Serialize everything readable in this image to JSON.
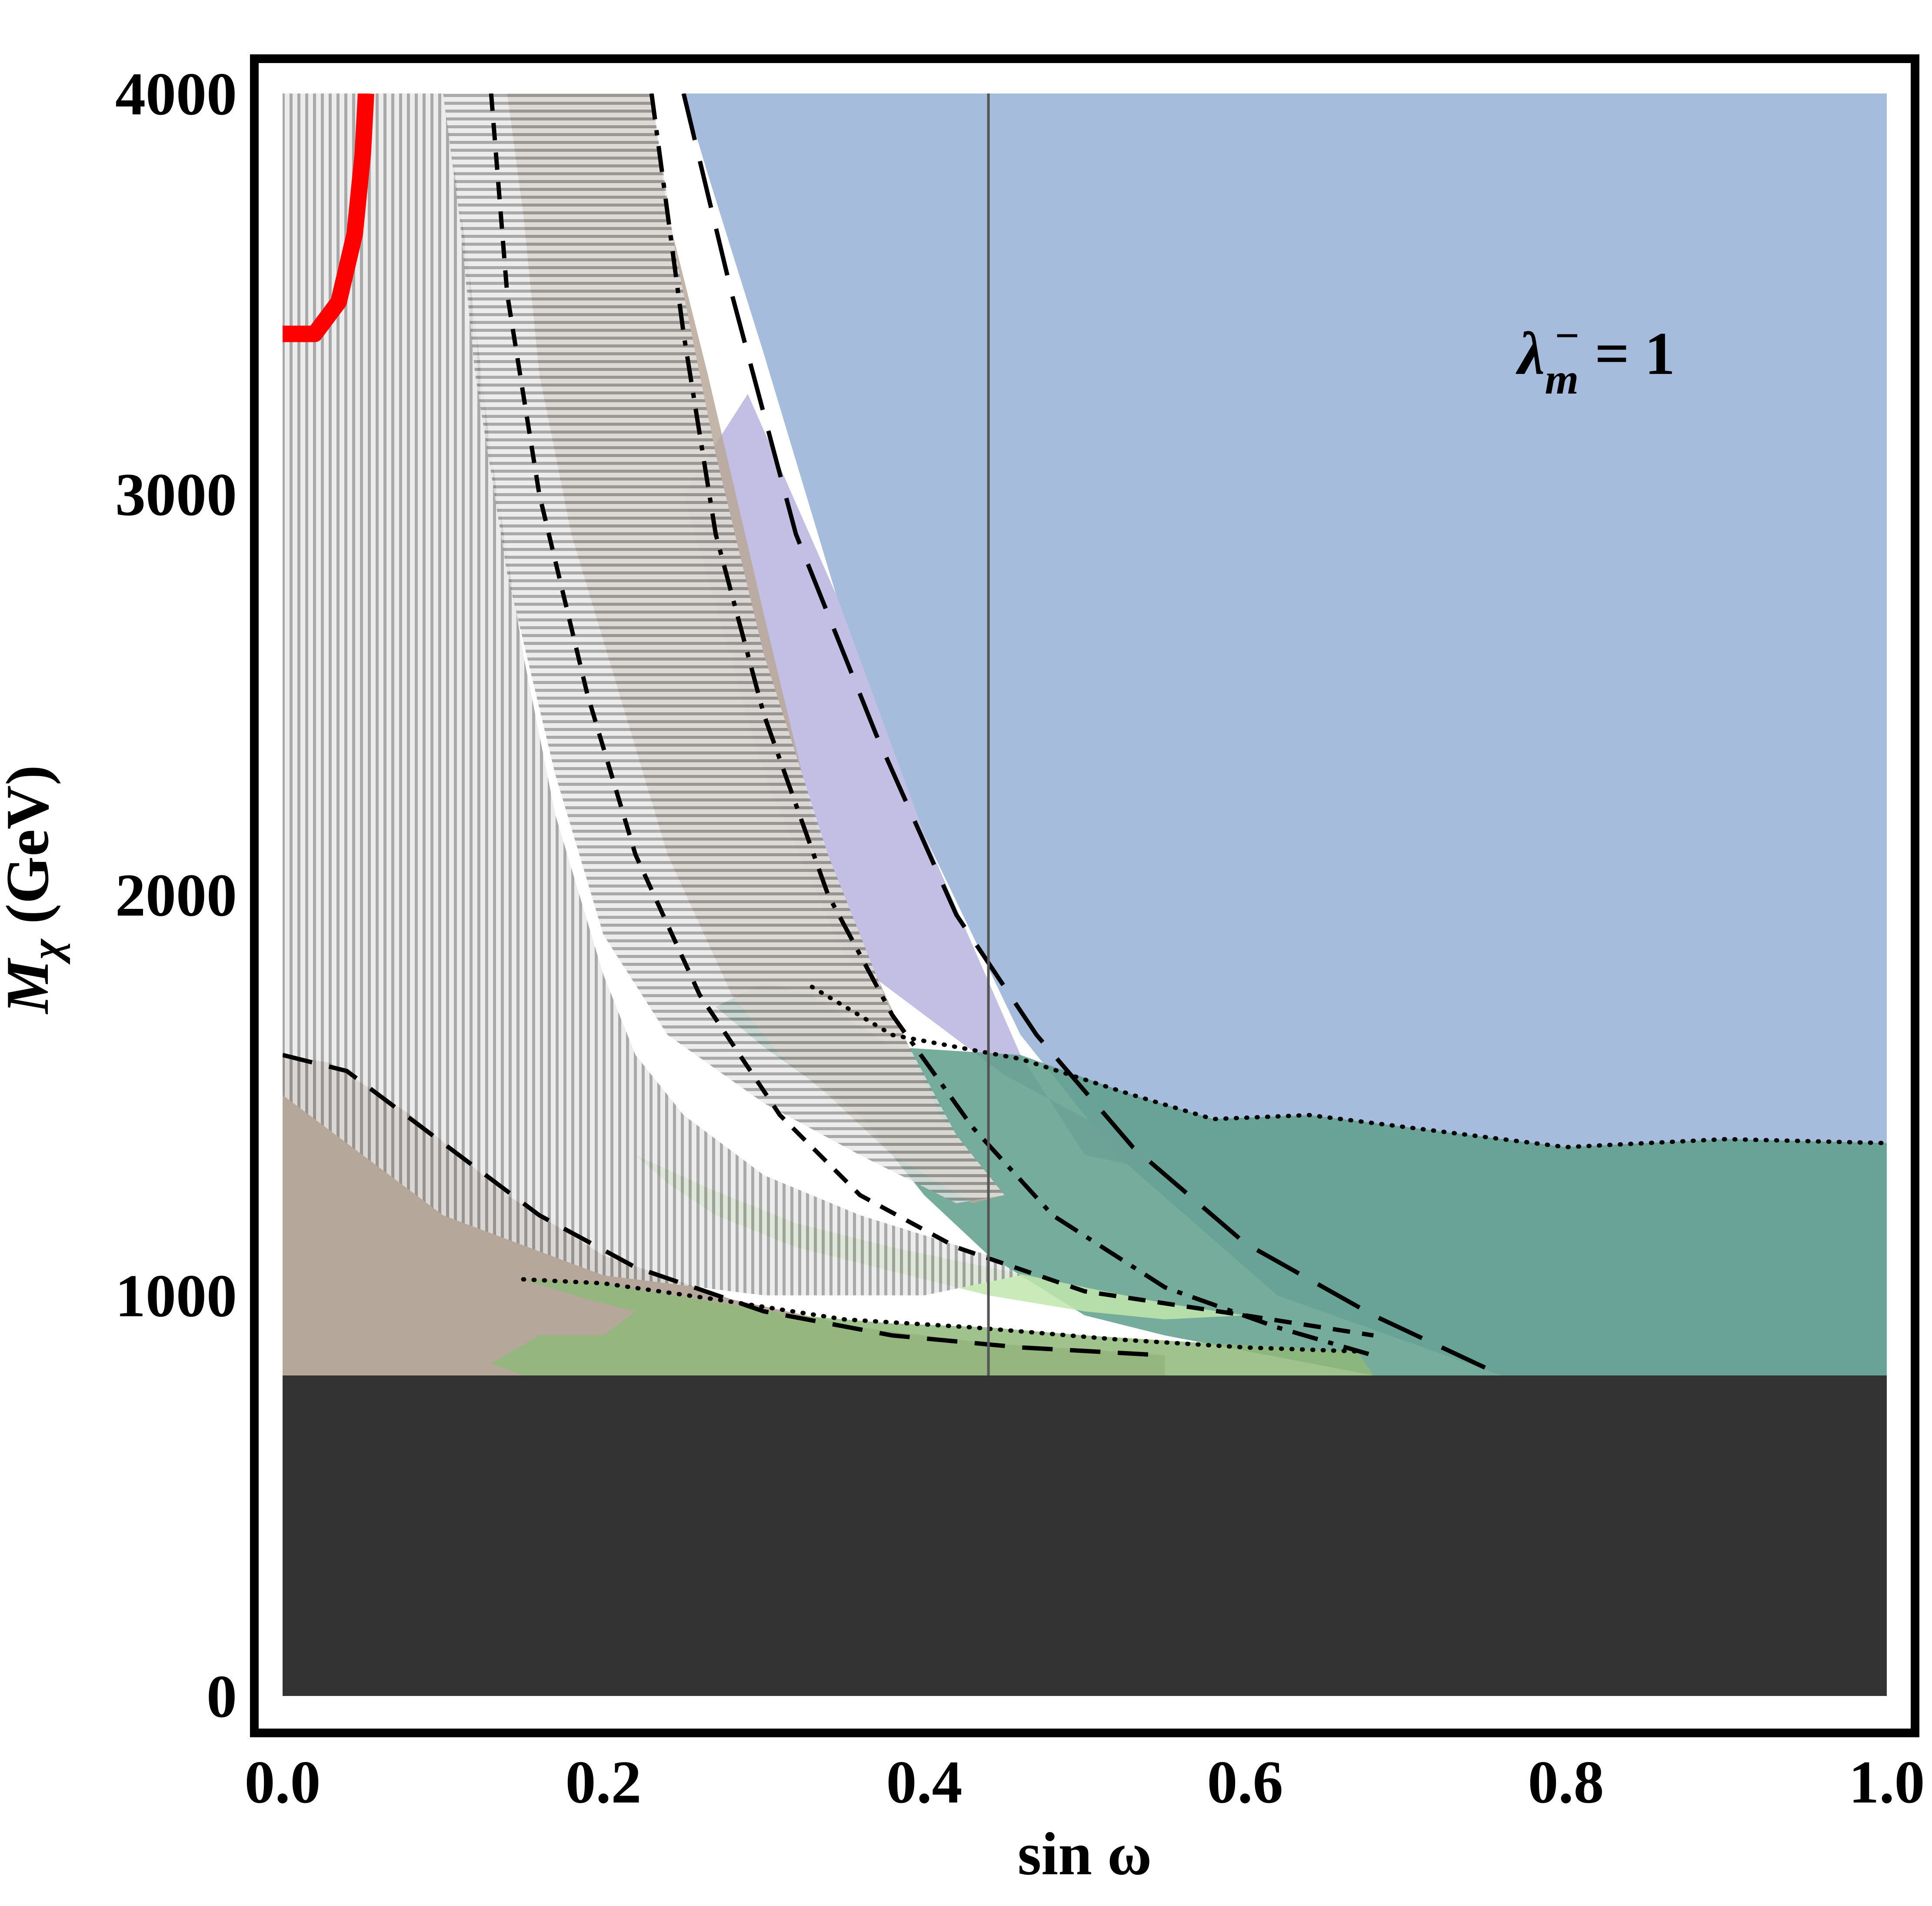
{
  "chart_data": {
    "type": "area",
    "title": "",
    "xlabel": "sin ω",
    "ylabel_main": "M",
    "ylabel_sub": "χ",
    "ylabel_unit": " (GeV)",
    "xlim": [
      0.0,
      1.0
    ],
    "ylim": [
      0,
      4000
    ],
    "x_ticks": [
      0.0,
      0.2,
      0.4,
      0.6,
      0.8,
      1.0
    ],
    "x_tick_labels": [
      "0.0",
      "0.2",
      "0.4",
      "0.6",
      "0.8",
      "1.0"
    ],
    "y_ticks": [
      0,
      1000,
      2000,
      3000,
      4000
    ],
    "y_tick_labels": [
      "0",
      "1000",
      "2000",
      "3000",
      "4000"
    ],
    "grid": false,
    "annotation": {
      "symbol": "λ",
      "sub": "m",
      "sup": "−",
      "rest": " = 1",
      "x": 0.77,
      "y": 3300
    },
    "regions": [
      {
        "name": "excluded-low-mass",
        "color": "#333333",
        "points": [
          [
            0.0,
            0
          ],
          [
            1.0,
            0
          ],
          [
            1.0,
            800
          ],
          [
            0.0,
            800
          ]
        ]
      },
      {
        "name": "region-blue",
        "color": "#95b0d6",
        "points": [
          [
            0.23,
            4000
          ],
          [
            1.0,
            4000
          ],
          [
            1.0,
            800
          ],
          [
            0.76,
            800
          ],
          [
            0.62,
            1000
          ],
          [
            0.52,
            1350
          ],
          [
            0.46,
            1650
          ],
          [
            0.4,
            2150
          ],
          [
            0.345,
            2750
          ],
          [
            0.3,
            3350
          ],
          [
            0.265,
            3800
          ],
          [
            0.25,
            4000
          ]
        ]
      },
      {
        "name": "region-purple",
        "color": "#b8b3de",
        "points": [
          [
            0.25,
            3000
          ],
          [
            0.3,
            2300
          ],
          [
            0.35,
            1850
          ],
          [
            0.45,
            1550
          ],
          [
            0.52,
            1400
          ],
          [
            0.56,
            1300
          ],
          [
            0.5,
            1350
          ],
          [
            0.46,
            1600
          ],
          [
            0.4,
            2150
          ],
          [
            0.345,
            2750
          ],
          [
            0.29,
            3250
          ]
        ]
      },
      {
        "name": "region-teal",
        "color": "#5e9e8a",
        "points": [
          [
            0.3,
            1780
          ],
          [
            0.33,
            1750
          ],
          [
            0.38,
            1620
          ],
          [
            0.46,
            1600
          ],
          [
            0.53,
            1500
          ],
          [
            0.58,
            1440
          ],
          [
            0.64,
            1450
          ],
          [
            0.7,
            1420
          ],
          [
            0.8,
            1370
          ],
          [
            0.85,
            1380
          ],
          [
            0.9,
            1390
          ],
          [
            1.0,
            1380
          ],
          [
            1.0,
            800
          ],
          [
            0.68,
            800
          ],
          [
            0.55,
            900
          ],
          [
            0.5,
            950
          ],
          [
            0.44,
            1100
          ],
          [
            0.4,
            1250
          ],
          [
            0.36,
            1450
          ],
          [
            0.3,
            1620
          ],
          [
            0.27,
            1720
          ]
        ]
      },
      {
        "name": "region-brown-band",
        "color": "#b8a898",
        "points": [
          [
            0.14,
            4000
          ],
          [
            0.23,
            4000
          ],
          [
            0.24,
            3700
          ],
          [
            0.265,
            3300
          ],
          [
            0.3,
            2700
          ],
          [
            0.33,
            2200
          ],
          [
            0.37,
            1800
          ],
          [
            0.41,
            1450
          ],
          [
            0.45,
            1250
          ],
          [
            0.43,
            1230
          ],
          [
            0.38,
            1350
          ],
          [
            0.34,
            1500
          ],
          [
            0.31,
            1600
          ],
          [
            0.28,
            1750
          ],
          [
            0.24,
            2100
          ],
          [
            0.21,
            2500
          ],
          [
            0.18,
            2900
          ],
          [
            0.16,
            3300
          ],
          [
            0.15,
            3700
          ]
        ]
      },
      {
        "name": "region-brown-low",
        "color": "#a89888",
        "points": [
          [
            0.0,
            1600
          ],
          [
            0.03,
            1580
          ],
          [
            0.08,
            1450
          ],
          [
            0.14,
            1250
          ],
          [
            0.2,
            1100
          ],
          [
            0.28,
            990
          ],
          [
            0.36,
            920
          ],
          [
            0.44,
            880
          ],
          [
            0.52,
            860
          ],
          [
            0.55,
            850
          ],
          [
            0.55,
            800
          ],
          [
            0.0,
            800
          ]
        ]
      },
      {
        "name": "region-green-low",
        "color": "#8fb87a",
        "points": [
          [
            0.15,
            1040
          ],
          [
            0.2,
            1030
          ],
          [
            0.26,
            990
          ],
          [
            0.32,
            950
          ],
          [
            0.38,
            930
          ],
          [
            0.44,
            920
          ],
          [
            0.5,
            900
          ],
          [
            0.58,
            880
          ],
          [
            0.67,
            860
          ],
          [
            0.68,
            800
          ],
          [
            0.15,
            800
          ],
          [
            0.13,
            830
          ],
          [
            0.16,
            900
          ],
          [
            0.2,
            900
          ],
          [
            0.22,
            960
          ],
          [
            0.19,
            990
          ]
        ]
      },
      {
        "name": "region-green-mid",
        "color": "#c2e6ae",
        "points": [
          [
            0.22,
            1350
          ],
          [
            0.27,
            1260
          ],
          [
            0.32,
            1180
          ],
          [
            0.38,
            1120
          ],
          [
            0.44,
            1070
          ],
          [
            0.5,
            1020
          ],
          [
            0.55,
            980
          ],
          [
            0.6,
            950
          ],
          [
            0.55,
            940
          ],
          [
            0.5,
            960
          ],
          [
            0.44,
            1000
          ],
          [
            0.38,
            1060
          ],
          [
            0.32,
            1120
          ],
          [
            0.27,
            1200
          ],
          [
            0.24,
            1280
          ]
        ]
      },
      {
        "name": "region-white-gap",
        "color": "#ffffff",
        "points": [
          [
            0.21,
            1600
          ],
          [
            0.24,
            1470
          ],
          [
            0.27,
            1370
          ],
          [
            0.3,
            1300
          ],
          [
            0.33,
            1250
          ],
          [
            0.31,
            1280
          ],
          [
            0.28,
            1320
          ],
          [
            0.25,
            1400
          ],
          [
            0.22,
            1500
          ]
        ]
      }
    ],
    "hatched_regions": [
      {
        "name": "hatch-vertical",
        "orientation": "vertical",
        "points": [
          [
            0.0,
            4000
          ],
          [
            0.1,
            4000
          ],
          [
            0.115,
            3600
          ],
          [
            0.13,
            3100
          ],
          [
            0.15,
            2600
          ],
          [
            0.17,
            2200
          ],
          [
            0.2,
            1800
          ],
          [
            0.22,
            1600
          ],
          [
            0.25,
            1450
          ],
          [
            0.3,
            1300
          ],
          [
            0.36,
            1200
          ],
          [
            0.44,
            1100
          ],
          [
            0.46,
            1050
          ],
          [
            0.4,
            1000
          ],
          [
            0.3,
            1000
          ],
          [
            0.2,
            1050
          ],
          [
            0.1,
            1200
          ],
          [
            0.0,
            1500
          ]
        ]
      },
      {
        "name": "hatch-horizontal",
        "orientation": "horizontal",
        "points": [
          [
            0.1,
            4000
          ],
          [
            0.23,
            4000
          ],
          [
            0.245,
            3600
          ],
          [
            0.27,
            3100
          ],
          [
            0.3,
            2600
          ],
          [
            0.34,
            2100
          ],
          [
            0.38,
            1700
          ],
          [
            0.42,
            1400
          ],
          [
            0.45,
            1250
          ],
          [
            0.42,
            1230
          ],
          [
            0.36,
            1350
          ],
          [
            0.3,
            1480
          ],
          [
            0.24,
            1650
          ],
          [
            0.2,
            1900
          ],
          [
            0.17,
            2300
          ],
          [
            0.14,
            2800
          ],
          [
            0.12,
            3300
          ],
          [
            0.11,
            3700
          ]
        ]
      }
    ],
    "curves": [
      {
        "name": "red-boundary",
        "color": "#ff0000",
        "style": "solid-thick",
        "points": [
          [
            0.0,
            3400
          ],
          [
            0.02,
            3400
          ],
          [
            0.035,
            3480
          ],
          [
            0.045,
            3650
          ],
          [
            0.05,
            3850
          ],
          [
            0.052,
            4000
          ]
        ]
      },
      {
        "name": "dash-short",
        "color": "#000000",
        "style": "short-dash",
        "points": [
          [
            0.13,
            4000
          ],
          [
            0.14,
            3500
          ],
          [
            0.16,
            3000
          ],
          [
            0.19,
            2500
          ],
          [
            0.22,
            2100
          ],
          [
            0.26,
            1750
          ],
          [
            0.31,
            1450
          ],
          [
            0.36,
            1250
          ],
          [
            0.42,
            1120
          ],
          [
            0.5,
            1010
          ],
          [
            0.6,
            950
          ],
          [
            0.68,
            900
          ]
        ]
      },
      {
        "name": "dash-medium",
        "color": "#000000",
        "style": "medium-dash",
        "points": [
          [
            0.0,
            1600
          ],
          [
            0.04,
            1560
          ],
          [
            0.1,
            1380
          ],
          [
            0.16,
            1200
          ],
          [
            0.22,
            1070
          ],
          [
            0.3,
            960
          ],
          [
            0.38,
            900
          ],
          [
            0.46,
            870
          ],
          [
            0.55,
            850
          ]
        ]
      },
      {
        "name": "dash-long",
        "color": "#000000",
        "style": "long-dash",
        "points": [
          [
            0.25,
            4000
          ],
          [
            0.28,
            3500
          ],
          [
            0.32,
            2900
          ],
          [
            0.37,
            2400
          ],
          [
            0.42,
            1950
          ],
          [
            0.47,
            1650
          ],
          [
            0.53,
            1370
          ],
          [
            0.6,
            1130
          ],
          [
            0.68,
            950
          ],
          [
            0.76,
            800
          ]
        ]
      },
      {
        "name": "dash-dot",
        "color": "#000000",
        "style": "dash-dot",
        "points": [
          [
            0.23,
            4000
          ],
          [
            0.25,
            3400
          ],
          [
            0.27,
            2900
          ],
          [
            0.3,
            2450
          ],
          [
            0.34,
            2000
          ],
          [
            0.38,
            1700
          ],
          [
            0.43,
            1420
          ],
          [
            0.48,
            1200
          ],
          [
            0.55,
            1020
          ],
          [
            0.62,
            920
          ],
          [
            0.68,
            850
          ]
        ]
      },
      {
        "name": "dotted-teal-boundary",
        "color": "#000000",
        "style": "dotted",
        "points": [
          [
            0.33,
            1770
          ],
          [
            0.38,
            1650
          ],
          [
            0.46,
            1590
          ],
          [
            0.53,
            1500
          ],
          [
            0.58,
            1440
          ],
          [
            0.64,
            1450
          ],
          [
            0.7,
            1420
          ],
          [
            0.8,
            1370
          ],
          [
            0.9,
            1390
          ],
          [
            1.0,
            1380
          ]
        ]
      },
      {
        "name": "dotted-green-boundary",
        "color": "#000000",
        "style": "dotted",
        "points": [
          [
            0.15,
            1040
          ],
          [
            0.2,
            1030
          ],
          [
            0.27,
            990
          ],
          [
            0.35,
            940
          ],
          [
            0.43,
            920
          ],
          [
            0.52,
            890
          ],
          [
            0.6,
            870
          ],
          [
            0.67,
            860
          ]
        ]
      },
      {
        "name": "sin-omega-marker",
        "color": "#555555",
        "style": "solid-thin",
        "points": [
          [
            0.44,
            800
          ],
          [
            0.44,
            4000
          ]
        ]
      }
    ]
  }
}
